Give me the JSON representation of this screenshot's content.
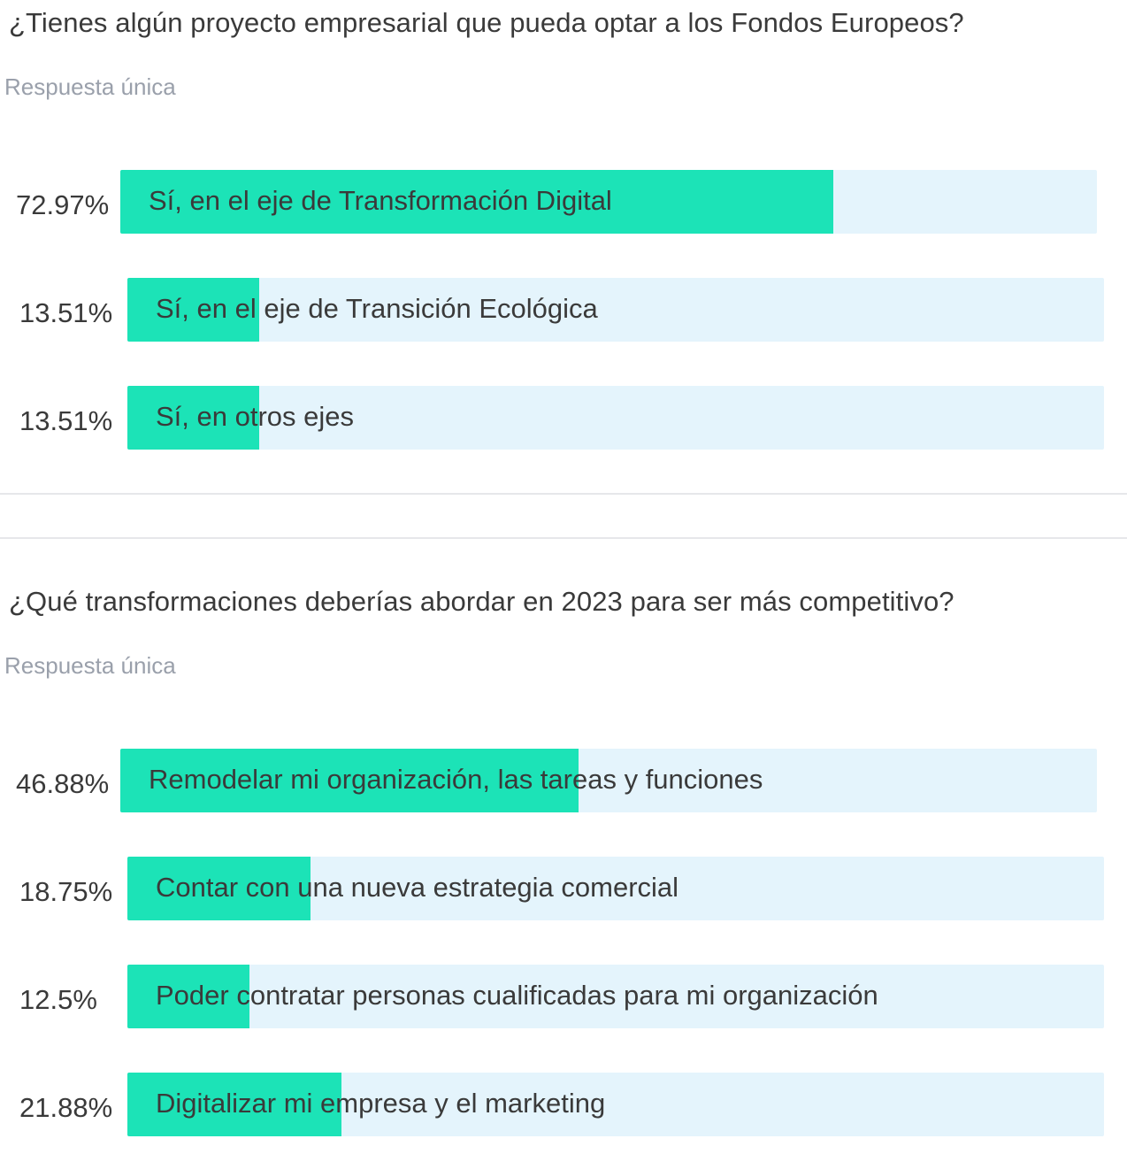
{
  "chart_data": [
    {
      "type": "bar",
      "orientation": "horizontal",
      "title": "¿Tienes algún proyecto empresarial que pueda optar a los Fondos Europeos?",
      "subtitle": "Respuesta única",
      "categories": [
        "Sí, en el eje de Transformación Digital",
        "Sí, en el eje de Transición Ecológica",
        "Sí, en otros ejes"
      ],
      "values": [
        72.97,
        13.51,
        13.51
      ],
      "value_labels": [
        "72.97%",
        "13.51%",
        "13.51%"
      ],
      "xlim": [
        0,
        100
      ]
    },
    {
      "type": "bar",
      "orientation": "horizontal",
      "title": "¿Qué transformaciones deberías abordar en 2023 para ser más competitivo?",
      "subtitle": "Respuesta única",
      "categories": [
        "Remodelar mi organización, las tareas y funciones",
        "Contar con una nueva estrategia comercial",
        "Poder contratar personas cualificadas para mi organización",
        "Digitalizar mi empresa y el marketing"
      ],
      "values": [
        46.88,
        18.75,
        12.5,
        21.88
      ],
      "value_labels": [
        "46.88%",
        "18.75%",
        "12.5%",
        "21.88%"
      ],
      "xlim": [
        0,
        100
      ]
    }
  ],
  "colors": {
    "fill": "#1ce3b7",
    "track": "#e4f4fc",
    "text": "#3a3a3a",
    "subtitle": "#9aa0ab"
  }
}
